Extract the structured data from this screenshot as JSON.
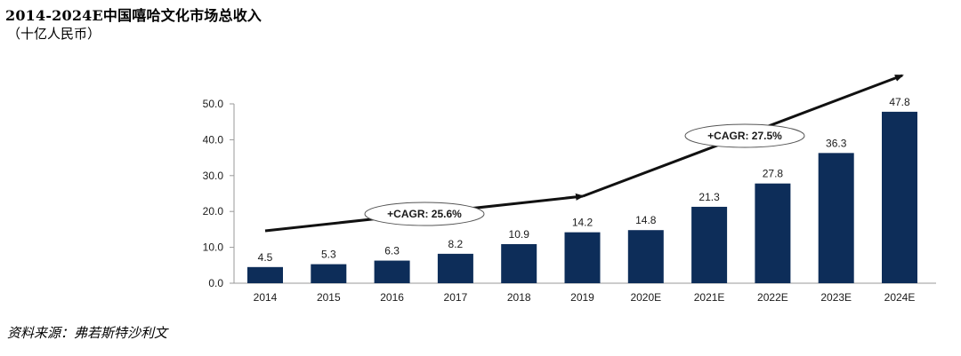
{
  "title": "2014-2024E中国嘻哈文化市场总收入",
  "subtitle": "（十亿人民币）",
  "source": "资料来源：弗若斯特沙利文",
  "colors": {
    "bar": "#0d2d59",
    "axis": "#9a9a9a",
    "arrow": "#111111"
  },
  "chart_data": {
    "type": "bar",
    "categories": [
      "2014",
      "2015",
      "2016",
      "2017",
      "2018",
      "2019",
      "2020E",
      "2021E",
      "2022E",
      "2023E",
      "2024E"
    ],
    "values": [
      4.5,
      5.3,
      6.3,
      8.2,
      10.9,
      14.2,
      14.8,
      21.3,
      27.8,
      36.3,
      47.8
    ],
    "value_labels": [
      "4.5",
      "5.3",
      "6.3",
      "8.2",
      "10.9",
      "14.2",
      "14.8",
      "21.3",
      "27.8",
      "36.3",
      "47.8"
    ],
    "y_ticks": [
      "0.0",
      "10.0",
      "20.0",
      "30.0",
      "40.0",
      "50.0"
    ],
    "ylim": [
      0,
      50
    ],
    "grid": false,
    "annotations": [
      {
        "text": "+CAGR: 25.6%",
        "from": "2014",
        "to": "2019"
      },
      {
        "text": "+CAGR: 27.5%",
        "from": "2019",
        "to": "2024E"
      }
    ]
  }
}
